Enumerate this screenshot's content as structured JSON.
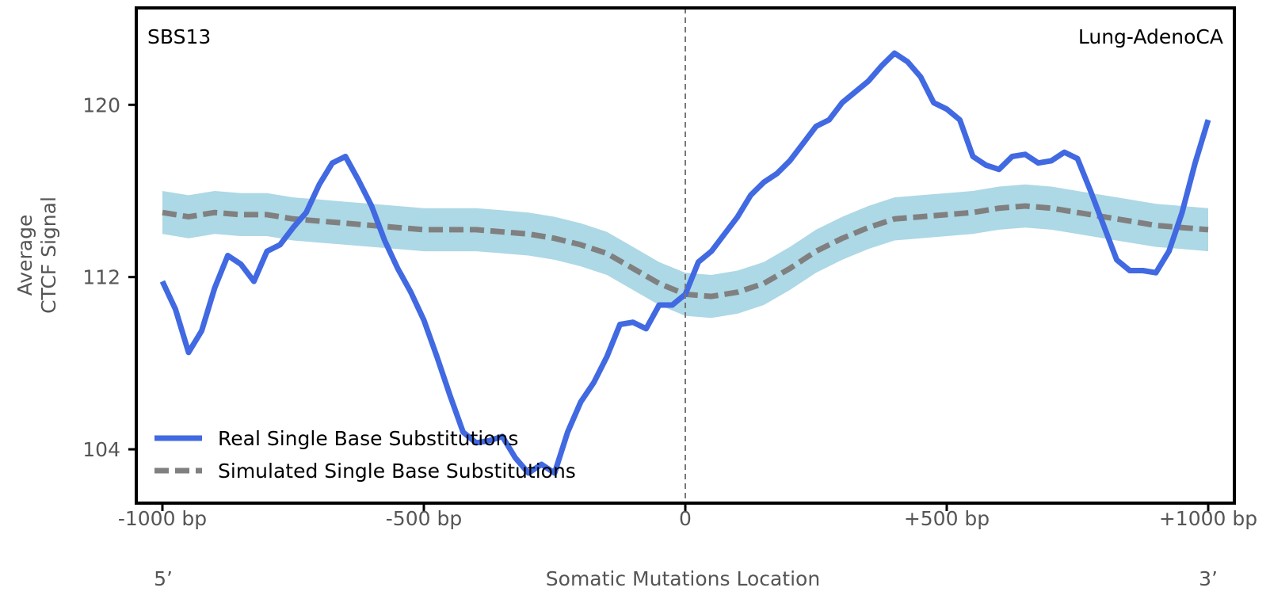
{
  "chart_data": {
    "type": "line",
    "signature_label": "SBS13",
    "cancer_type_label": "Lung-AdenoCA",
    "ylabel_lines": [
      "Average",
      "CTCF Signal"
    ],
    "xlabel": "Somatic Mutations Location",
    "end_labels": {
      "left": "5’",
      "right": "3’"
    },
    "xlim": [
      -1050,
      1050
    ],
    "ylim": [
      101.5,
      124.5
    ],
    "x_ticks": [
      {
        "value": -1000,
        "label": "-1000 bp"
      },
      {
        "value": -500,
        "label": "-500 bp"
      },
      {
        "value": 0,
        "label": "0"
      },
      {
        "value": 500,
        "label": "+500 bp"
      },
      {
        "value": 1000,
        "label": "+1000 bp"
      }
    ],
    "y_ticks": [
      {
        "value": 104,
        "label": "104"
      },
      {
        "value": 112,
        "label": "112"
      },
      {
        "value": 120,
        "label": "120"
      }
    ],
    "center_line_x": 0,
    "legend": {
      "position": "lower-left"
    },
    "series": [
      {
        "name": "Real Single Base Substitutions",
        "style": "solid",
        "color": "#4169e1",
        "x": [
          -1000,
          -975,
          -950,
          -925,
          -900,
          -875,
          -850,
          -825,
          -800,
          -775,
          -750,
          -725,
          -700,
          -675,
          -650,
          -625,
          -600,
          -575,
          -550,
          -525,
          -500,
          -475,
          -450,
          -425,
          -400,
          -375,
          -350,
          -325,
          -300,
          -275,
          -250,
          -225,
          -200,
          -175,
          -150,
          -125,
          -100,
          -75,
          -50,
          -25,
          0,
          25,
          50,
          75,
          100,
          125,
          150,
          175,
          200,
          225,
          250,
          275,
          300,
          325,
          350,
          375,
          400,
          425,
          450,
          475,
          500,
          525,
          550,
          575,
          600,
          625,
          650,
          675,
          700,
          725,
          750,
          775,
          800,
          825,
          850,
          875,
          900,
          925,
          950,
          975,
          1000
        ],
        "values": [
          111.8,
          110.5,
          108.5,
          109.5,
          111.5,
          113.0,
          112.6,
          111.8,
          113.2,
          113.5,
          114.3,
          115.0,
          116.3,
          117.3,
          117.6,
          116.5,
          115.3,
          113.7,
          112.4,
          111.3,
          110.0,
          108.3,
          106.5,
          104.8,
          104.3,
          104.4,
          104.6,
          103.6,
          102.9,
          103.3,
          102.9,
          104.8,
          106.2,
          107.1,
          108.3,
          109.8,
          109.9,
          109.6,
          110.7,
          110.7,
          111.2,
          112.7,
          113.2,
          114.0,
          114.8,
          115.8,
          116.4,
          116.8,
          117.4,
          118.2,
          119.0,
          119.3,
          120.1,
          120.6,
          121.1,
          121.8,
          122.4,
          122.0,
          121.3,
          120.1,
          119.8,
          119.3,
          117.6,
          117.2,
          117.0,
          117.6,
          117.7,
          117.3,
          117.4,
          117.8,
          117.5,
          116.0,
          114.4,
          112.8,
          112.3,
          112.3,
          112.2,
          113.2,
          115.0,
          117.3,
          119.3
        ]
      },
      {
        "name": "Simulated Single Base Substitutions",
        "style": "dashed",
        "color": "#808080",
        "band_color": "#add8e6",
        "band_halfwidth": 1.0,
        "x": [
          -1000,
          -950,
          -900,
          -850,
          -800,
          -750,
          -700,
          -650,
          -600,
          -550,
          -500,
          -450,
          -400,
          -350,
          -300,
          -250,
          -200,
          -150,
          -100,
          -50,
          0,
          50,
          100,
          150,
          200,
          250,
          300,
          350,
          400,
          450,
          500,
          550,
          600,
          650,
          700,
          750,
          800,
          850,
          900,
          950,
          1000
        ],
        "values": [
          115.0,
          114.8,
          115.0,
          114.9,
          114.9,
          114.7,
          114.6,
          114.5,
          114.4,
          114.3,
          114.2,
          114.2,
          114.2,
          114.1,
          114.0,
          113.8,
          113.5,
          113.1,
          112.4,
          111.7,
          111.2,
          111.1,
          111.3,
          111.7,
          112.4,
          113.2,
          113.8,
          114.3,
          114.7,
          114.8,
          114.9,
          115.0,
          115.2,
          115.3,
          115.2,
          115.0,
          114.8,
          114.6,
          114.4,
          114.3,
          114.2
        ]
      }
    ]
  }
}
